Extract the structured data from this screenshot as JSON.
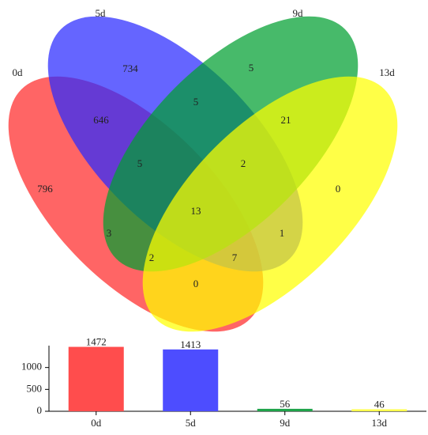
{
  "chart_data": [
    {
      "type": "venn",
      "sets": [
        {
          "name": "0d",
          "color": "#ff2a2a"
        },
        {
          "name": "5d",
          "color": "#2a2aff"
        },
        {
          "name": "9d",
          "color": "#00a030"
        },
        {
          "name": "13d",
          "color": "#ffff00"
        }
      ],
      "regions": [
        796,
        734,
        5,
        0,
        646,
        5,
        21,
        5,
        2,
        13,
        3,
        1,
        2,
        7,
        0
      ]
    },
    {
      "type": "bar",
      "categories": [
        "0d",
        "5d",
        "9d",
        "13d"
      ],
      "values": [
        1472,
        1413,
        56,
        46
      ],
      "colors": [
        "#ff4d4d",
        "#4d4dff",
        "#1fa34a",
        "#ffff4d"
      ],
      "ylim": [
        0,
        1500
      ],
      "yticks": [
        0,
        500,
        1000
      ]
    }
  ]
}
